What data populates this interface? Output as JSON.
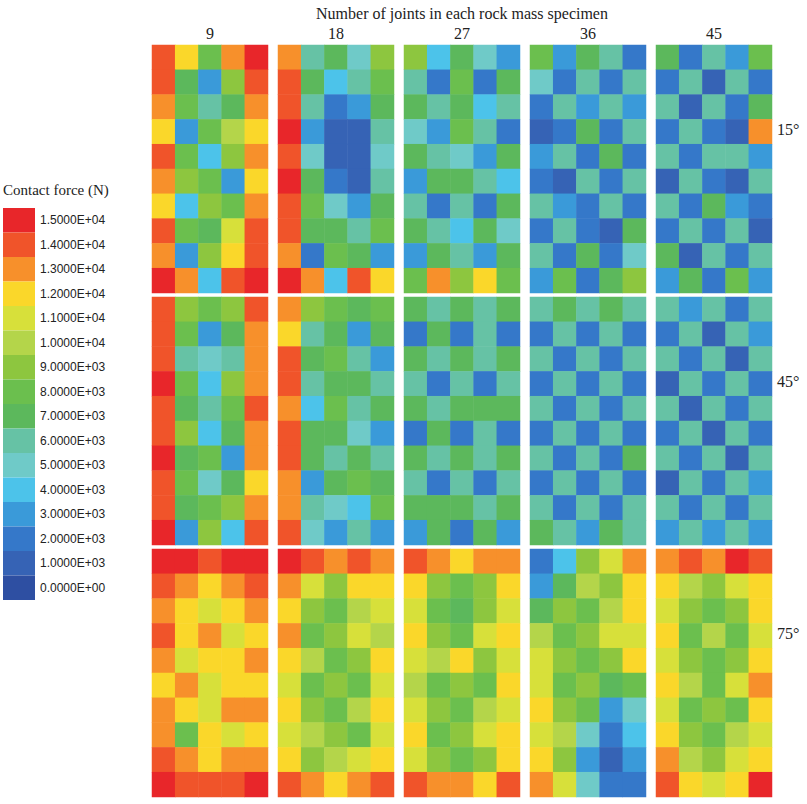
{
  "chart_data": {
    "type": "heatmap",
    "title": "Number of joints in each rock mass specimen",
    "columns": [
      9,
      18,
      27,
      36,
      45
    ],
    "rows": [
      "15°",
      "45°",
      "75°"
    ],
    "tick_labels": false,
    "colorbar": {
      "title": "Contact force (N)",
      "range": [
        0,
        15000
      ],
      "ticks": [
        {
          "value": 15000,
          "label": "1.5000E+04"
        },
        {
          "value": 14000,
          "label": "1.4000E+04"
        },
        {
          "value": 13000,
          "label": "1.3000E+04"
        },
        {
          "value": 12000,
          "label": "1.2000E+04"
        },
        {
          "value": 11000,
          "label": "1.1000E+04"
        },
        {
          "value": 10000,
          "label": "1.0000E+04"
        },
        {
          "value": 9000,
          "label": "9.0000E+03"
        },
        {
          "value": 8000,
          "label": "8.0000E+03"
        },
        {
          "value": 7000,
          "label": "7.0000E+03"
        },
        {
          "value": 6000,
          "label": "6.0000E+03"
        },
        {
          "value": 5000,
          "label": "5.0000E+03"
        },
        {
          "value": 4000,
          "label": "4.0000E+03"
        },
        {
          "value": 3000,
          "label": "3.0000E+03"
        },
        {
          "value": 2000,
          "label": "2.0000E+03"
        },
        {
          "value": 1000,
          "label": "1.0000E+03"
        },
        {
          "value": 0,
          "label": "0.0000E+00"
        }
      ],
      "colors": [
        "#e8262a",
        "#f0542a",
        "#f7902b",
        "#fad72a",
        "#d7e03a",
        "#b4d54a",
        "#8dc63f",
        "#6bbf4e",
        "#5cb85c",
        "#66c2a5",
        "#6fcac8",
        "#4cc3ea",
        "#3a9ad9",
        "#3578c9",
        "#3663b5",
        "#2e4fa2"
      ]
    },
    "cells": [
      [
        [
          [
            14000,
            12000,
            8000,
            13000,
            15000
          ],
          [
            14000,
            7000,
            3000,
            9000,
            14000
          ],
          [
            13000,
            8000,
            6000,
            7000,
            13000
          ],
          [
            12000,
            3000,
            8000,
            10000,
            12000
          ],
          [
            14000,
            8000,
            4000,
            9000,
            13000
          ],
          [
            13000,
            9000,
            8000,
            3000,
            12000
          ],
          [
            12000,
            4000,
            9000,
            8000,
            13000
          ],
          [
            14000,
            8000,
            7000,
            11000,
            14000
          ],
          [
            13000,
            3000,
            9000,
            12000,
            14000
          ],
          [
            15000,
            13000,
            4000,
            14000,
            15000
          ]
        ],
        [
          [
            13000,
            6000,
            7000,
            5000,
            9000
          ],
          [
            14000,
            7000,
            4000,
            6000,
            8000
          ],
          [
            14000,
            6000,
            2000,
            3000,
            7000
          ],
          [
            15000,
            3000,
            1000,
            1000,
            6000
          ],
          [
            14000,
            5000,
            1000,
            1000,
            5000
          ],
          [
            15000,
            7000,
            2000,
            1000,
            6000
          ],
          [
            14000,
            8000,
            5000,
            3000,
            7000
          ],
          [
            14000,
            7000,
            7000,
            6000,
            8000
          ],
          [
            13000,
            2000,
            8000,
            7000,
            3000
          ],
          [
            15000,
            13000,
            4000,
            14000,
            12000
          ]
        ],
        [
          [
            9000,
            4000,
            7000,
            5000,
            3000
          ],
          [
            6000,
            2000,
            8000,
            2000,
            7000
          ],
          [
            7000,
            6000,
            7000,
            4000,
            6000
          ],
          [
            5000,
            3000,
            8000,
            6000,
            2000
          ],
          [
            7000,
            6000,
            5000,
            3000,
            7000
          ],
          [
            3000,
            7000,
            7000,
            6000,
            4000
          ],
          [
            6000,
            2000,
            6000,
            2000,
            7000
          ],
          [
            7000,
            6000,
            4000,
            7000,
            5000
          ],
          [
            3000,
            7000,
            6000,
            3000,
            7000
          ],
          [
            8000,
            13000,
            9000,
            12000,
            8000
          ]
        ],
        [
          [
            8000,
            3000,
            7000,
            6000,
            2000
          ],
          [
            5000,
            2000,
            6000,
            2000,
            6000
          ],
          [
            2000,
            6000,
            3000,
            6000,
            3000
          ],
          [
            1000,
            2000,
            7000,
            2000,
            6000
          ],
          [
            3000,
            6000,
            2000,
            7000,
            2000
          ],
          [
            2000,
            1000,
            6000,
            2000,
            6000
          ],
          [
            6000,
            3000,
            2000,
            6000,
            2000
          ],
          [
            2000,
            6000,
            2000,
            1000,
            7000
          ],
          [
            6000,
            2000,
            7000,
            2000,
            5000
          ],
          [
            3000,
            8000,
            2000,
            7000,
            9000
          ]
        ],
        [
          [
            7000,
            2000,
            6000,
            3000,
            8000
          ],
          [
            2000,
            6000,
            1000,
            6000,
            2000
          ],
          [
            6000,
            1000,
            6000,
            2000,
            7000
          ],
          [
            2000,
            6000,
            2000,
            1000,
            13000
          ],
          [
            6000,
            2000,
            6000,
            6000,
            3000
          ],
          [
            1000,
            6000,
            2000,
            1000,
            6000
          ],
          [
            6000,
            2000,
            7000,
            3000,
            2000
          ],
          [
            2000,
            6000,
            2000,
            6000,
            1000
          ],
          [
            7000,
            1000,
            6000,
            2000,
            6000
          ],
          [
            3000,
            7000,
            2000,
            8000,
            3000
          ]
        ]
      ],
      [
        [
          [
            14000,
            9000,
            8000,
            9000,
            14000
          ],
          [
            14000,
            8000,
            3000,
            7000,
            13000
          ],
          [
            14000,
            6000,
            5000,
            6000,
            13000
          ],
          [
            15000,
            8000,
            4000,
            9000,
            13000
          ],
          [
            14000,
            7000,
            6000,
            8000,
            14000
          ],
          [
            14000,
            9000,
            4000,
            7000,
            13000
          ],
          [
            15000,
            7000,
            8000,
            3000,
            13000
          ],
          [
            14000,
            8000,
            5000,
            7000,
            12000
          ],
          [
            14000,
            7000,
            8000,
            9000,
            13000
          ],
          [
            15000,
            3000,
            9000,
            4000,
            14000
          ]
        ],
        [
          [
            13000,
            9000,
            8000,
            7000,
            8000
          ],
          [
            12000,
            6000,
            7000,
            3000,
            7000
          ],
          [
            14000,
            7000,
            8000,
            6000,
            3000
          ],
          [
            14000,
            6000,
            7000,
            7000,
            6000
          ],
          [
            13000,
            4000,
            8000,
            6000,
            7000
          ],
          [
            14000,
            7000,
            7000,
            5000,
            3000
          ],
          [
            14000,
            7000,
            6000,
            7000,
            6000
          ],
          [
            13000,
            3000,
            7000,
            8000,
            7000
          ],
          [
            13000,
            6000,
            5000,
            4000,
            8000
          ],
          [
            14000,
            5000,
            3000,
            6000,
            3000
          ]
        ],
        [
          [
            7000,
            6000,
            7000,
            6000,
            7000
          ],
          [
            2000,
            7000,
            2000,
            6000,
            2000
          ],
          [
            7000,
            6000,
            7000,
            6000,
            7000
          ],
          [
            6000,
            2000,
            6000,
            2000,
            6000
          ],
          [
            7000,
            6000,
            7000,
            7000,
            7000
          ],
          [
            2000,
            7000,
            2000,
            6000,
            2000
          ],
          [
            7000,
            6000,
            7000,
            6000,
            7000
          ],
          [
            6000,
            2000,
            6000,
            2000,
            6000
          ],
          [
            7000,
            7000,
            7000,
            6000,
            7000
          ],
          [
            3000,
            7000,
            2000,
            7000,
            3000
          ]
        ],
        [
          [
            6000,
            7000,
            6000,
            7000,
            6000
          ],
          [
            2000,
            6000,
            2000,
            6000,
            2000
          ],
          [
            6000,
            2000,
            6000,
            2000,
            6000
          ],
          [
            2000,
            6000,
            2000,
            6000,
            2000
          ],
          [
            6000,
            2000,
            6000,
            2000,
            6000
          ],
          [
            2000,
            6000,
            2000,
            6000,
            2000
          ],
          [
            6000,
            2000,
            6000,
            2000,
            7000
          ],
          [
            2000,
            6000,
            2000,
            6000,
            2000
          ],
          [
            6000,
            2000,
            6000,
            2000,
            6000
          ],
          [
            7000,
            6000,
            3000,
            7000,
            6000
          ]
        ],
        [
          [
            6000,
            3000,
            6000,
            2000,
            6000
          ],
          [
            2000,
            6000,
            1000,
            6000,
            3000
          ],
          [
            6000,
            2000,
            6000,
            1000,
            6000
          ],
          [
            1000,
            6000,
            2000,
            6000,
            2000
          ],
          [
            6000,
            1000,
            6000,
            2000,
            6000
          ],
          [
            2000,
            6000,
            1000,
            6000,
            2000
          ],
          [
            6000,
            2000,
            6000,
            1000,
            6000
          ],
          [
            1000,
            6000,
            2000,
            6000,
            3000
          ],
          [
            6000,
            2000,
            6000,
            2000,
            6000
          ],
          [
            3000,
            6000,
            3000,
            6000,
            3000
          ]
        ]
      ],
      [
        [
          [
            15000,
            15000,
            14000,
            15000,
            15000
          ],
          [
            14000,
            13000,
            12000,
            13000,
            14000
          ],
          [
            13000,
            12000,
            11000,
            12000,
            13000
          ],
          [
            14000,
            12000,
            13000,
            11000,
            12000
          ],
          [
            13000,
            11000,
            12000,
            12000,
            13000
          ],
          [
            12000,
            13000,
            11000,
            12000,
            12000
          ],
          [
            13000,
            12000,
            11000,
            13000,
            13000
          ],
          [
            13000,
            8000,
            12000,
            11000,
            12000
          ],
          [
            14000,
            13000,
            12000,
            13000,
            13000
          ],
          [
            15000,
            14000,
            14000,
            14000,
            15000
          ]
        ],
        [
          [
            15000,
            14000,
            13000,
            14000,
            13000
          ],
          [
            13000,
            11000,
            9000,
            12000,
            12000
          ],
          [
            12000,
            9000,
            8000,
            10000,
            11000
          ],
          [
            13000,
            8000,
            9000,
            11000,
            10000
          ],
          [
            12000,
            10000,
            8000,
            9000,
            12000
          ],
          [
            11000,
            8000,
            9000,
            8000,
            11000
          ],
          [
            12000,
            9000,
            8000,
            10000,
            12000
          ],
          [
            11000,
            10000,
            9000,
            8000,
            11000
          ],
          [
            12000,
            9000,
            10000,
            11000,
            12000
          ],
          [
            14000,
            13000,
            12000,
            13000,
            14000
          ]
        ],
        [
          [
            14000,
            13000,
            12000,
            13000,
            13000
          ],
          [
            12000,
            9000,
            8000,
            9000,
            12000
          ],
          [
            11000,
            8000,
            7000,
            9000,
            11000
          ],
          [
            12000,
            9000,
            8000,
            11000,
            12000
          ],
          [
            11000,
            10000,
            12000,
            9000,
            11000
          ],
          [
            10000,
            8000,
            9000,
            8000,
            12000
          ],
          [
            11000,
            9000,
            8000,
            10000,
            11000
          ],
          [
            12000,
            8000,
            9000,
            11000,
            12000
          ],
          [
            11000,
            9000,
            8000,
            9000,
            12000
          ],
          [
            14000,
            13000,
            13000,
            12000,
            14000
          ]
        ],
        [
          [
            2000,
            4000,
            9000,
            11000,
            13000
          ],
          [
            3000,
            7000,
            10000,
            9000,
            12000
          ],
          [
            7000,
            9000,
            8000,
            10000,
            12000
          ],
          [
            10000,
            8000,
            9000,
            11000,
            11000
          ],
          [
            11000,
            9000,
            8000,
            9000,
            12000
          ],
          [
            11000,
            8000,
            9000,
            7000,
            8000
          ],
          [
            12000,
            9000,
            8000,
            3000,
            5000
          ],
          [
            11000,
            10000,
            5000,
            2000,
            4000
          ],
          [
            12000,
            9000,
            3000,
            1000,
            3000
          ],
          [
            13000,
            11000,
            5000,
            2000,
            2000
          ]
        ],
        [
          [
            13000,
            14000,
            13000,
            15000,
            14000
          ],
          [
            12000,
            10000,
            9000,
            11000,
            12000
          ],
          [
            11000,
            9000,
            8000,
            9000,
            12000
          ],
          [
            12000,
            8000,
            10000,
            8000,
            11000
          ],
          [
            11000,
            9000,
            8000,
            9000,
            12000
          ],
          [
            12000,
            10000,
            8000,
            11000,
            13000
          ],
          [
            11000,
            8000,
            9000,
            8000,
            12000
          ],
          [
            12000,
            9000,
            8000,
            10000,
            11000
          ],
          [
            13000,
            10000,
            9000,
            11000,
            12000
          ],
          [
            14000,
            12000,
            11000,
            12000,
            15000
          ]
        ]
      ]
    ]
  }
}
